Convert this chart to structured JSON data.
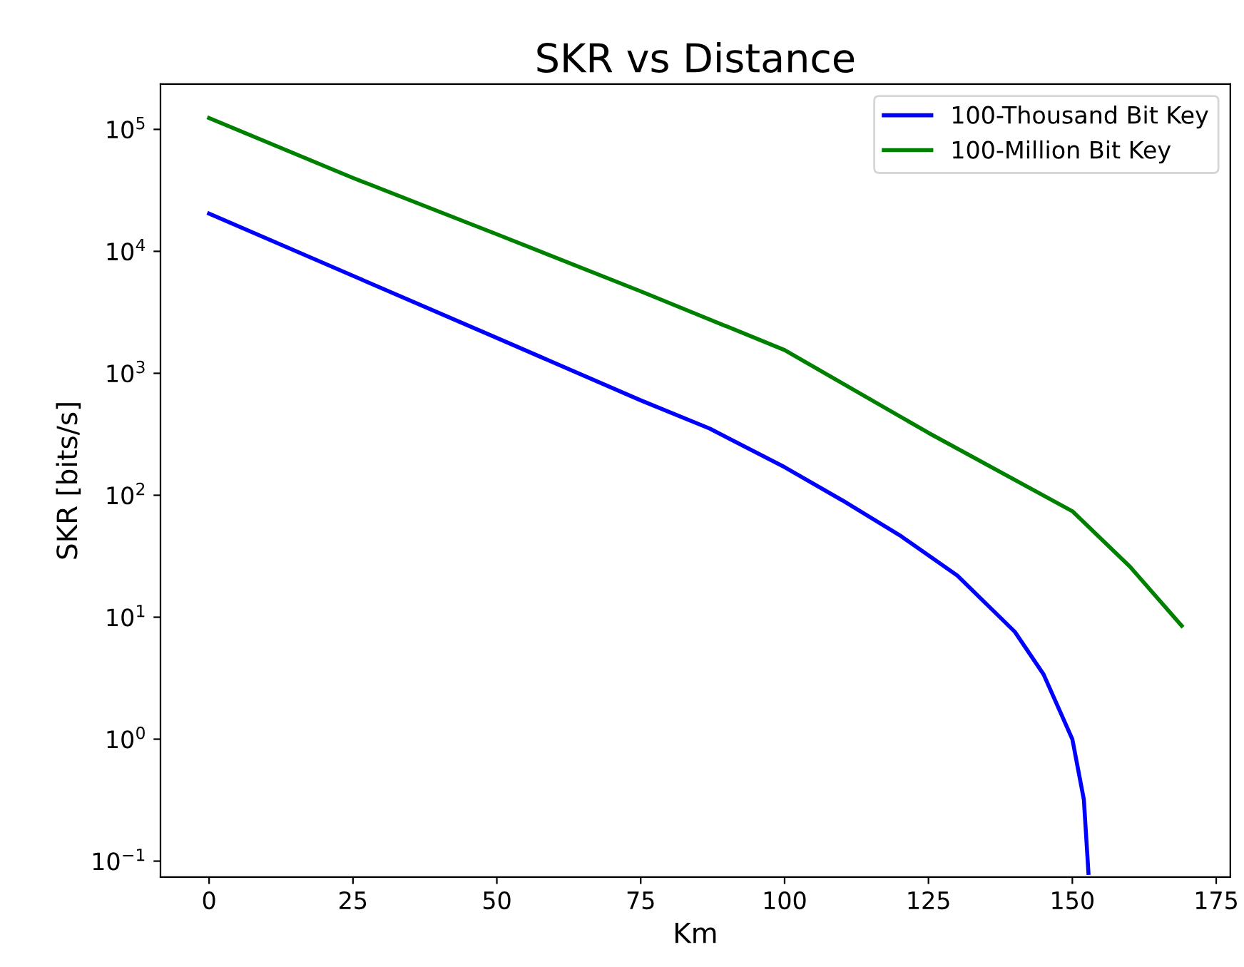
{
  "chart_data": {
    "type": "line",
    "title": "SKR vs Distance",
    "xlabel": "Km",
    "ylabel": "SKR [bits/s]",
    "log": "y",
    "xlim": [
      -8.45,
      177.45
    ],
    "xticks": [
      0,
      25,
      50,
      75,
      100,
      125,
      150,
      175
    ],
    "ylim": [
      0.074,
      235000
    ],
    "yticks": [
      {
        "value": 0.1,
        "label": "10$^{−1}$"
      },
      {
        "value": 1,
        "label": "10$^{0}$"
      },
      {
        "value": 10,
        "label": "10$^{1}$"
      },
      {
        "value": 100,
        "label": "10$^{2}$"
      },
      {
        "value": 1000,
        "label": "10$^{3}$"
      },
      {
        "value": 10000,
        "label": "10$^{4}$"
      },
      {
        "value": 100000,
        "label": "10$^{5}$"
      }
    ],
    "grid": false,
    "legend": "top right",
    "marker": "none",
    "line_style": "solid",
    "series": [
      {
        "name": "100-Thousand Bit Key",
        "color": "#0000ff",
        "x": [
          0,
          25,
          50,
          75,
          87,
          100,
          110,
          120,
          130,
          140,
          145,
          150,
          152,
          152.8
        ],
        "values": [
          20400,
          6300,
          1950,
          600,
          352,
          170,
          91,
          47,
          22,
          7.6,
          3.4,
          1.0,
          0.32,
          0.08
        ]
      },
      {
        "name": "100-Million Bit Key",
        "color": "#008000",
        "x": [
          0,
          25,
          50,
          75,
          100,
          125,
          150,
          160,
          169
        ],
        "values": [
          124000,
          40000,
          13800,
          4700,
          1550,
          325,
          74,
          26,
          8.5
        ]
      }
    ]
  }
}
